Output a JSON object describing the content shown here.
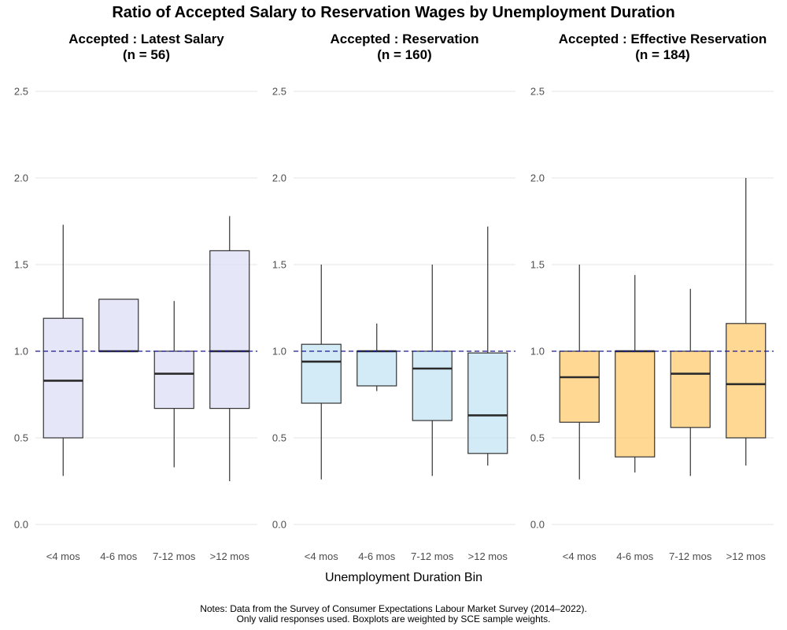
{
  "title": "Ratio of Accepted Salary to Reservation Wages by Unemployment Duration",
  "xlabel": "Unemployment Duration Bin",
  "notes": [
    "Notes: Data from the Survey of Consumer Expectations Labour Market Survey (2014–2022).",
    "Only valid responses used. Boxplots are weighted by SCE sample weights."
  ],
  "chart_data": {
    "type": "box",
    "categories": [
      "<4 mos",
      "4-6 mos",
      "7-12 mos",
      ">12 mos"
    ],
    "ylim": [
      -0.1,
      2.7
    ],
    "yticks": [
      0.0,
      0.5,
      1.0,
      1.5,
      2.0,
      2.5
    ],
    "ytick_labels": [
      "0.0",
      "0.5",
      "1.0",
      "1.5",
      "2.0",
      "2.5"
    ],
    "reference_line": 1.0,
    "grid": true,
    "panels": [
      {
        "title": "Accepted : Latest Salary",
        "subtitle": "(n = 56)",
        "color": "#dcdcf6",
        "boxes": [
          {
            "category": "<4 mos",
            "whisker_low": 0.28,
            "q1": 0.5,
            "median": 0.83,
            "q3": 1.19,
            "whisker_high": 1.73
          },
          {
            "category": "4-6 mos",
            "whisker_low": 1.0,
            "q1": 1.0,
            "median": 1.0,
            "q3": 1.3,
            "whisker_high": 1.3
          },
          {
            "category": "7-12 mos",
            "whisker_low": 0.33,
            "q1": 0.67,
            "median": 0.87,
            "q3": 1.0,
            "whisker_high": 1.29
          },
          {
            "category": ">12 mos",
            "whisker_low": 0.25,
            "q1": 0.67,
            "median": 1.0,
            "q3": 1.58,
            "whisker_high": 1.78
          }
        ]
      },
      {
        "title": "Accepted : Reservation",
        "subtitle": "(n = 160)",
        "color": "#bfe3f3",
        "boxes": [
          {
            "category": "<4 mos",
            "whisker_low": 0.26,
            "q1": 0.7,
            "median": 0.94,
            "q3": 1.04,
            "whisker_high": 1.5
          },
          {
            "category": "4-6 mos",
            "whisker_low": 0.77,
            "q1": 0.8,
            "median": 1.0,
            "q3": 1.0,
            "whisker_high": 1.16
          },
          {
            "category": "7-12 mos",
            "whisker_low": 0.28,
            "q1": 0.6,
            "median": 0.9,
            "q3": 1.0,
            "whisker_high": 1.5
          },
          {
            "category": ">12 mos",
            "whisker_low": 0.34,
            "q1": 0.41,
            "median": 0.63,
            "q3": 0.99,
            "whisker_high": 1.72
          }
        ]
      },
      {
        "title": "Accepted : Effective Reservation",
        "subtitle": "(n = 184)",
        "color": "#ffc966",
        "boxes": [
          {
            "category": "<4 mos",
            "whisker_low": 0.26,
            "q1": 0.59,
            "median": 0.85,
            "q3": 1.0,
            "whisker_high": 1.5
          },
          {
            "category": "4-6 mos",
            "whisker_low": 0.3,
            "q1": 0.39,
            "median": 1.0,
            "q3": 1.0,
            "whisker_high": 1.44
          },
          {
            "category": "7-12 mos",
            "whisker_low": 0.28,
            "q1": 0.56,
            "median": 0.87,
            "q3": 1.0,
            "whisker_high": 1.36
          },
          {
            "category": ">12 mos",
            "whisker_low": 0.34,
            "q1": 0.5,
            "median": 0.81,
            "q3": 1.16,
            "whisker_high": 2.0
          }
        ]
      }
    ]
  }
}
